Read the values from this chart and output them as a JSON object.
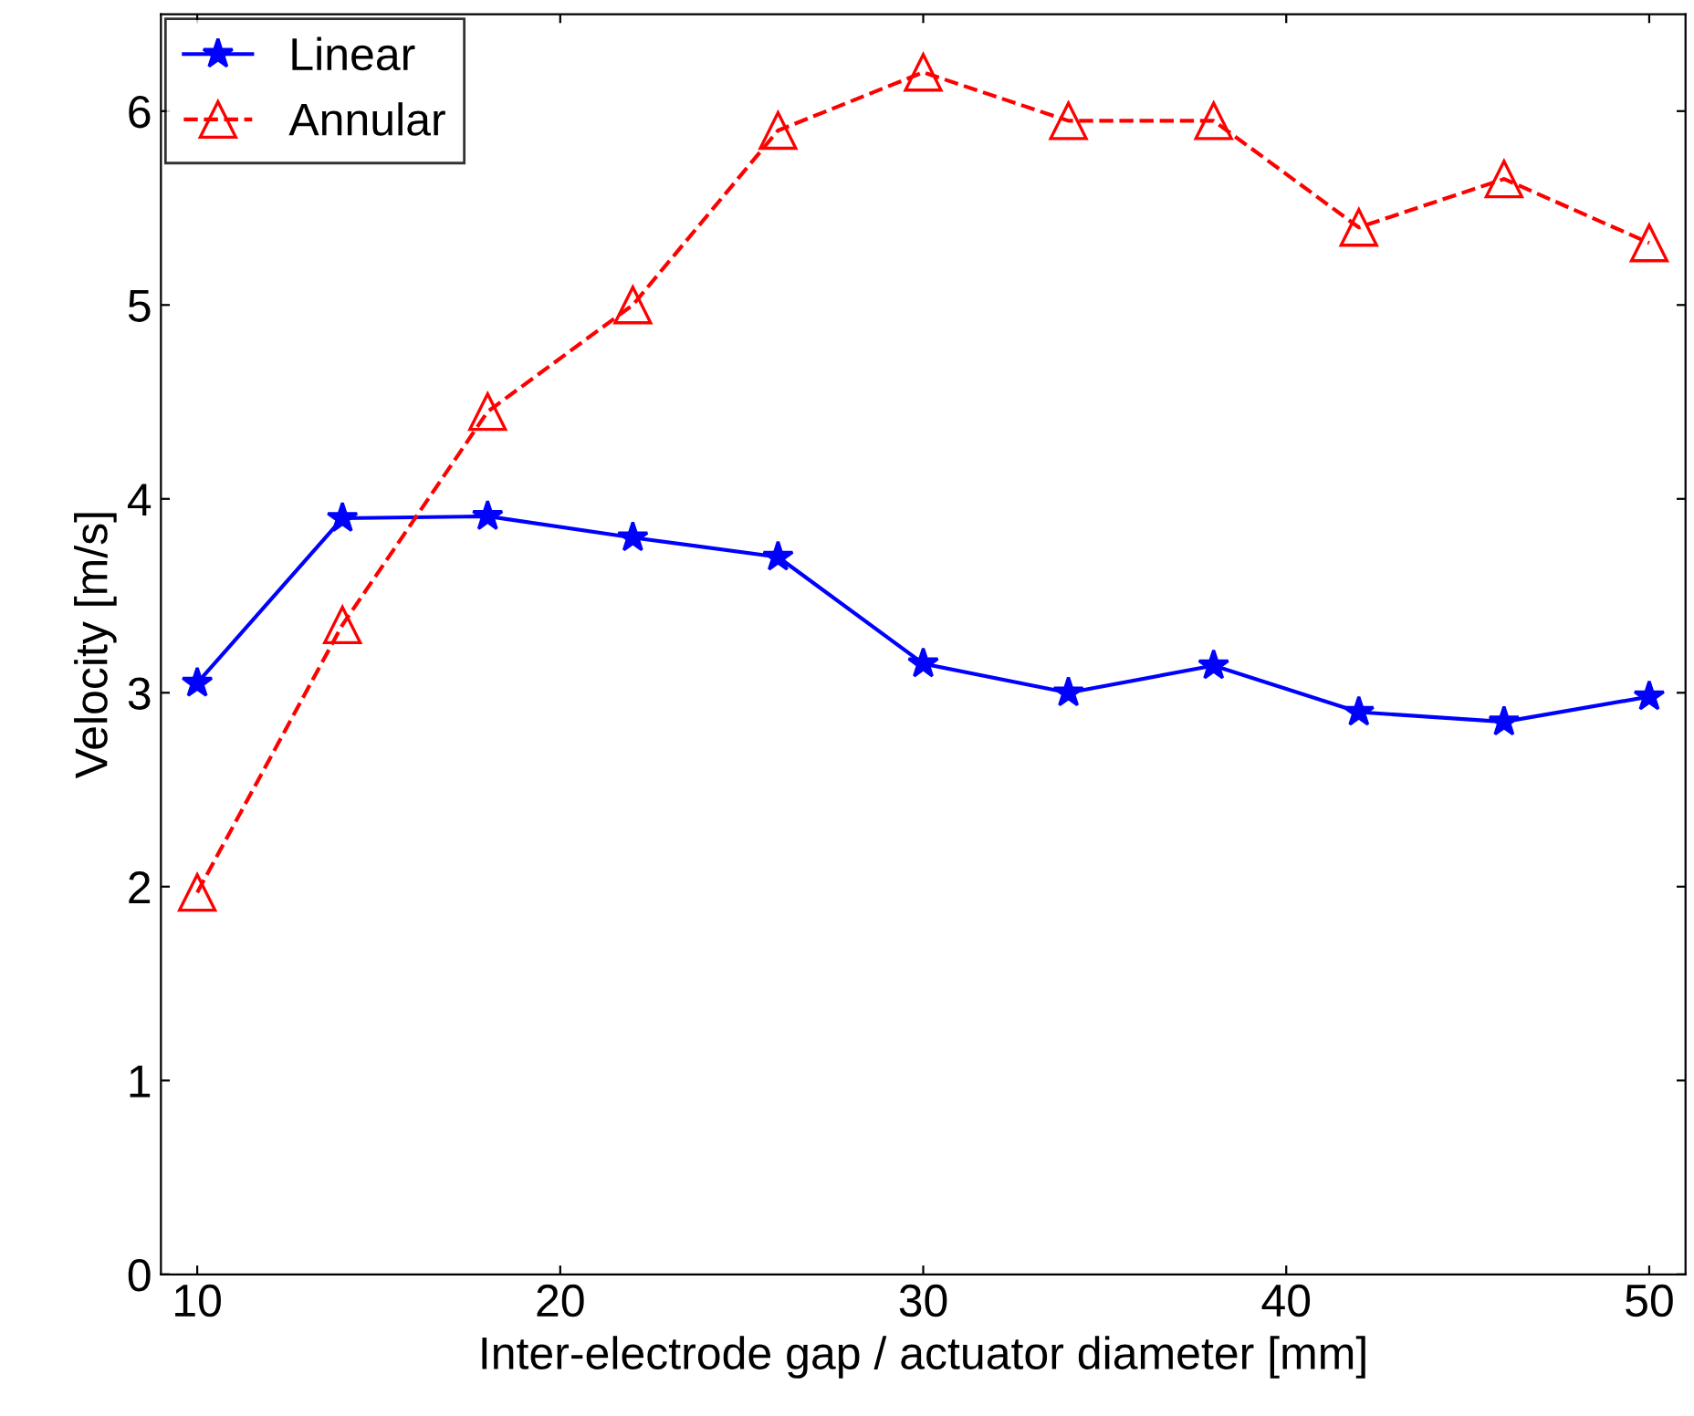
{
  "chart_data": {
    "type": "line",
    "xlabel": "Inter-electrode gap / actuator diameter [mm]",
    "ylabel": "Velocity [m/s]",
    "x": [
      10,
      14,
      18,
      22,
      26,
      30,
      34,
      38,
      42,
      46,
      50
    ],
    "series": [
      {
        "name": "Linear",
        "color": "#0000ff",
        "marker": "star",
        "line_style": "solid",
        "values": [
          3.05,
          3.9,
          3.91,
          3.8,
          3.7,
          3.15,
          3.0,
          3.14,
          2.9,
          2.85,
          2.98
        ]
      },
      {
        "name": "Annular",
        "color": "#ff0000",
        "marker": "triangle",
        "line_style": "dashed",
        "values": [
          1.97,
          3.35,
          4.45,
          5.0,
          5.9,
          6.2,
          5.95,
          5.95,
          5.4,
          5.65,
          5.32
        ]
      }
    ],
    "xlim": [
      9,
      51
    ],
    "xticks": [
      10,
      20,
      30,
      40,
      50
    ],
    "ylim": [
      0,
      6.5
    ],
    "yticks": [
      0,
      1,
      2,
      3,
      4,
      5,
      6
    ],
    "grid": false,
    "legend": "top left"
  }
}
